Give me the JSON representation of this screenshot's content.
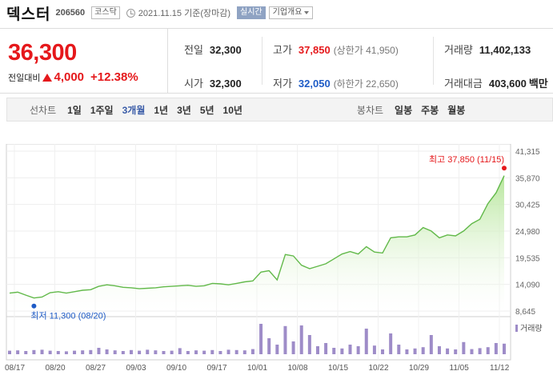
{
  "header": {
    "name": "덱스터",
    "code": "206560",
    "market": "코스닥",
    "date": "2021.11.15 기준(장마감)",
    "realtime": "실시간",
    "company_info": "기업개요"
  },
  "price": {
    "current": "36,300",
    "change_label": "전일대비",
    "change_value": "4,000",
    "change_rate": "+12.38%"
  },
  "stats": {
    "prev_close_label": "전일",
    "prev_close": "32,300",
    "open_label": "시가",
    "open": "32,300",
    "high_label": "고가",
    "high": "37,850",
    "upper_limit": "(상한가 41,950)",
    "low_label": "저가",
    "low": "32,050",
    "lower_limit": "(하한가 22,650)",
    "volume_label": "거래량",
    "volume": "11,402,133",
    "amount_label": "거래대금",
    "amount": "403,600",
    "amount_unit": "백만"
  },
  "tabs": {
    "line_label": "선차트",
    "line_items": [
      "1일",
      "1주일",
      "3개월",
      "1년",
      "3년",
      "5년",
      "10년"
    ],
    "active_index": 2,
    "candle_label": "봉차트",
    "candle_items": [
      "일봉",
      "주봉",
      "월봉"
    ]
  },
  "colors": {
    "up": "#e5181b",
    "down": "#1e5bc6",
    "line": "#62b94a",
    "fill": "#b7e69c",
    "volume": "#9e8cc8"
  },
  "chart_data": {
    "type": "area",
    "ylim": [
      8645,
      41315
    ],
    "y_ticks": [
      "41,315",
      "35,870",
      "30,425",
      "24,980",
      "19,535",
      "14,090",
      "8,645"
    ],
    "x_labels": [
      "08/17",
      "08/20",
      "08/27",
      "09/03",
      "09/10",
      "09/17",
      "10/01",
      "10/08",
      "10/15",
      "10/22",
      "10/29",
      "11/05",
      "11/12"
    ],
    "high_label": "최고  37,850 (11/15)",
    "low_label": "최저  11,300 (08/20)",
    "volume_label": "거래량",
    "prices": [
      12300,
      12500,
      11900,
      11300,
      11500,
      12400,
      12600,
      12300,
      12600,
      12900,
      13000,
      13700,
      14000,
      13800,
      13500,
      13400,
      13200,
      13300,
      13400,
      13600,
      13700,
      13800,
      13900,
      13700,
      13800,
      14300,
      14200,
      14000,
      14300,
      14600,
      14800,
      16600,
      16900,
      15000,
      20200,
      19900,
      18000,
      17300,
      17800,
      18300,
      19300,
      20300,
      20800,
      20300,
      21800,
      20700,
      20500,
      23600,
      23800,
      23800,
      24200,
      25700,
      25000,
      23600,
      24200,
      24000,
      25000,
      26500,
      27400,
      30600,
      32800,
      36300
    ],
    "volumes": [
      1.1,
      1.2,
      1.0,
      1.3,
      1.4,
      1.1,
      1.0,
      0.9,
      1.1,
      1.2,
      1.3,
      2.0,
      1.5,
      1.2,
      1.0,
      1.3,
      1.1,
      1.4,
      1.2,
      1.0,
      1.1,
      1.9,
      1.0,
      1.2,
      1.1,
      1.3,
      1.0,
      1.4,
      1.3,
      1.2,
      1.6,
      9.5,
      5.0,
      3.0,
      8.8,
      4.0,
      9.0,
      6.0,
      2.5,
      3.5,
      2.0,
      1.8,
      3.0,
      2.5,
      8.0,
      2.7,
      1.5,
      6.5,
      3.0,
      1.5,
      1.8,
      2.2,
      6.0,
      2.5,
      1.8,
      1.5,
      3.8,
      1.6,
      1.9,
      2.2,
      3.5,
      3.3
    ]
  }
}
